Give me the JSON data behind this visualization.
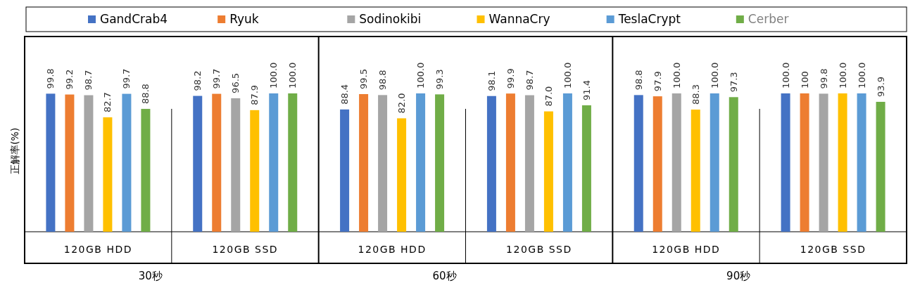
{
  "chart_data": {
    "type": "bar",
    "ylabel": "正解率(%)",
    "legend": "top",
    "categories": [
      "120GB HDD",
      "120GB SSD",
      "120GB HDD",
      "120GB SSD",
      "120GB HDD",
      "120GB SSD"
    ],
    "annotations": [
      "30秒",
      "60秒",
      "90秒"
    ],
    "series": [
      {
        "name": "GandCrab4",
        "color": "#4472c4",
        "values": [
          99.8,
          98.2,
          88.4,
          98.1,
          98.8,
          100.0
        ],
        "value_labels": [
          "99.8",
          "98.2",
          "88.4",
          "98.1",
          "98.8",
          "100.0"
        ]
      },
      {
        "name": "Ryuk",
        "color": "#ed7d31",
        "values": [
          99.2,
          99.7,
          99.5,
          99.9,
          97.9,
          100
        ],
        "value_labels": [
          "99.2",
          "99.7",
          "99.5",
          "99.9",
          "97.9",
          "100"
        ]
      },
      {
        "name": "Sodinokibi",
        "color": "#a5a5a5",
        "values": [
          98.7,
          96.5,
          98.8,
          98.7,
          100.0,
          99.8
        ],
        "value_labels": [
          "98.7",
          "96.5",
          "98.8",
          "98.7",
          "100.0",
          "99.8"
        ]
      },
      {
        "name": "WannaCry",
        "color": "#ffc000",
        "values": [
          82.7,
          87.9,
          82.0,
          87.0,
          88.3,
          100.0
        ],
        "value_labels": [
          "82.7",
          "87.9",
          "82.0",
          "87.0",
          "88.3",
          "100.0"
        ]
      },
      {
        "name": "TeslaCrypt",
        "color": "#5b9bd5",
        "values": [
          99.7,
          100.0,
          100.0,
          100.0,
          100.0,
          100.0
        ],
        "value_labels": [
          "99.7",
          "100.0",
          "100.0",
          "100.0",
          "100.0",
          "100.0"
        ]
      },
      {
        "name": "Cerber",
        "color": "#70ad47",
        "values": [
          88.8,
          100.0,
          99.3,
          91.4,
          97.3,
          93.9
        ],
        "value_labels": [
          "88.8",
          "100.0",
          "99.3",
          "91.4",
          "97.3",
          "93.9"
        ]
      }
    ]
  }
}
